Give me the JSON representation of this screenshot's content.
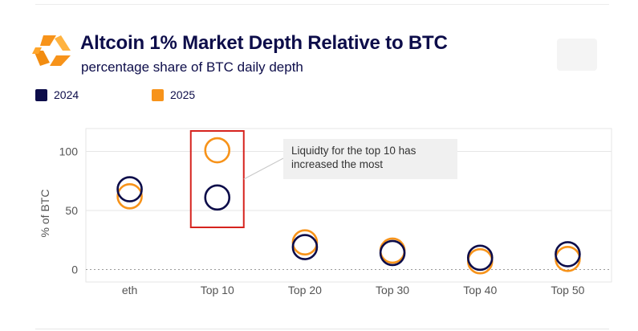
{
  "header": {
    "title": "Altcoin 1% Market Depth Relative to BTC",
    "subtitle": "percentage share of BTC daily depth"
  },
  "logo": {
    "name": "kaiko-logo-icon"
  },
  "colors": {
    "series_2024": "#0d0d4a",
    "series_2025": "#f7931a",
    "highlight": "#d6231e",
    "grid": "#e6e6e6"
  },
  "legend": [
    {
      "label": "2024",
      "color": "#0d0d4a"
    },
    {
      "label": "2025",
      "color": "#f7931a"
    }
  ],
  "annotation": {
    "text": "Liquidty for the top 10 has increased the most",
    "target_category": "Top 10"
  },
  "chart_data": {
    "type": "scatter",
    "title": "Altcoin 1% Market Depth Relative to BTC",
    "subtitle": "percentage share of BTC daily depth",
    "xlabel": "",
    "ylabel": "% of BTC",
    "categories": [
      "eth",
      "Top 10",
      "Top 20",
      "Top 30",
      "Top 40",
      "Top 50"
    ],
    "series": [
      {
        "name": "2024",
        "color": "#0d0d4a",
        "values": [
          68,
          61,
          19,
          14,
          10,
          13
        ]
      },
      {
        "name": "2025",
        "color": "#f7931a",
        "values": [
          62,
          101,
          23,
          16,
          7,
          9
        ]
      }
    ],
    "yticks": [
      0,
      50,
      100
    ],
    "ylim": [
      -10,
      115
    ],
    "grid": true,
    "legend_position": "top-left"
  }
}
